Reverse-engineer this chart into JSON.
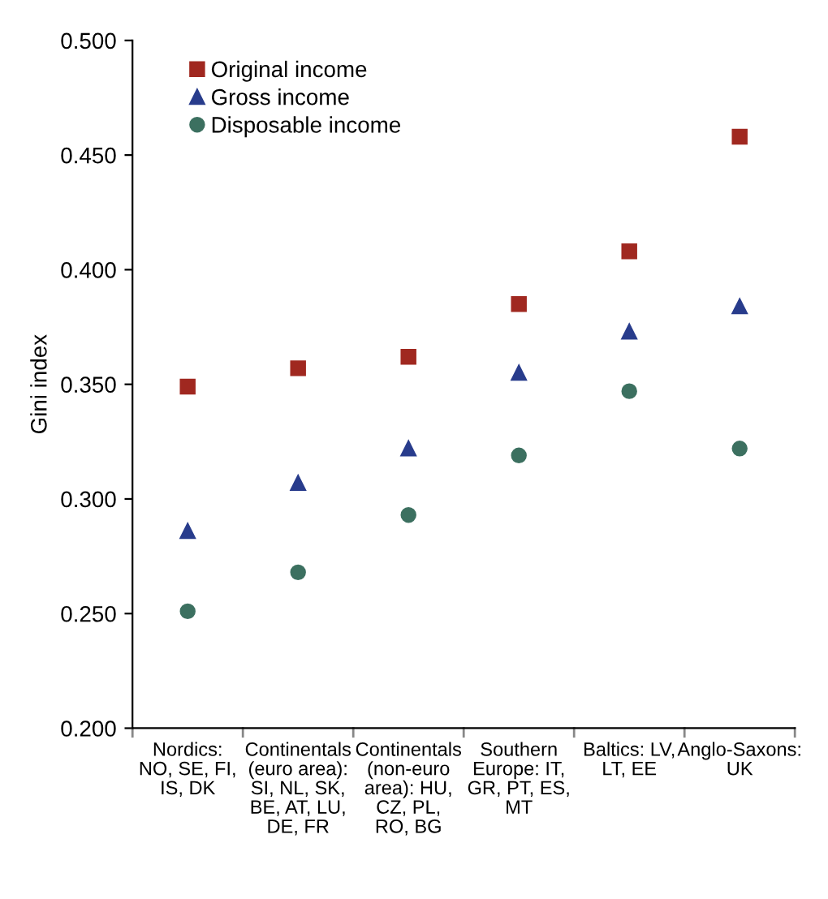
{
  "chart_data": {
    "type": "scatter",
    "ylabel": "Gini index",
    "categories": [
      "Nordics: NO, SE, FI, IS, DK",
      "Continentals (euro area): SI, NL, SK, BE, AT, LU, DE, FR",
      "Continentals (non-euro area): HU, CZ, PL, RO, BG",
      "Southern Europe: IT, GR, PT, ES, MT",
      "Baltics: LV, LT, EE",
      "Anglo-Saxons: UK"
    ],
    "series": [
      {
        "name": "Original income",
        "color": "#a02820",
        "marker": "square",
        "values": [
          0.349,
          0.357,
          0.362,
          0.385,
          0.408,
          0.458
        ]
      },
      {
        "name": "Gross income",
        "color": "#283c8c",
        "marker": "triangle",
        "values": [
          0.286,
          0.307,
          0.322,
          0.355,
          0.373,
          0.384
        ]
      },
      {
        "name": "Disposable income",
        "color": "#3c7060",
        "marker": "circle",
        "values": [
          0.251,
          0.268,
          0.293,
          0.319,
          0.347,
          0.322
        ]
      }
    ],
    "ylim": [
      0.2,
      0.5
    ],
    "yticks": [
      {
        "value": 0.2,
        "label": "0.200"
      },
      {
        "value": 0.25,
        "label": "0.250"
      },
      {
        "value": 0.3,
        "label": "0.300"
      },
      {
        "value": 0.35,
        "label": "0.350"
      },
      {
        "value": 0.4,
        "label": "0.400"
      },
      {
        "value": 0.45,
        "label": "0.450"
      },
      {
        "value": 0.5,
        "label": "0.500"
      }
    ],
    "grid": false,
    "legend": "top left"
  }
}
